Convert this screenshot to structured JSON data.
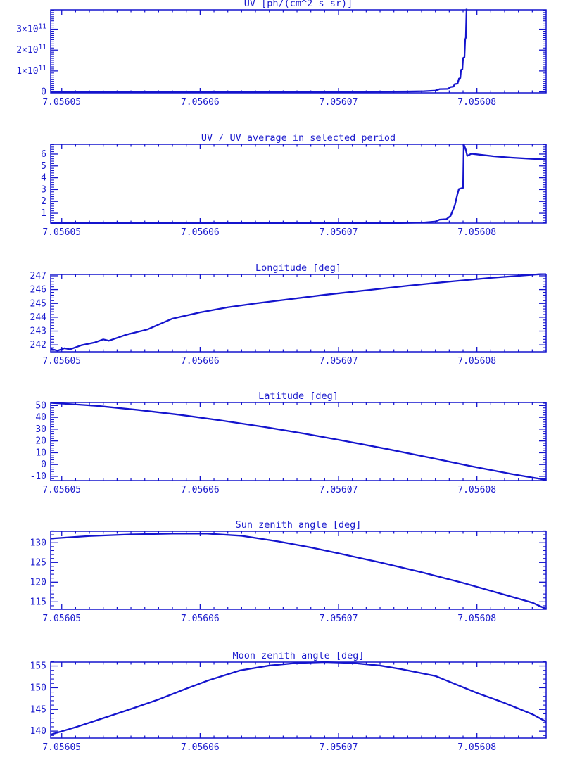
{
  "figure": {
    "background": "#ffffff",
    "line_color": "#1414cd",
    "text_color": "#1a1acd"
  },
  "x_axis": {
    "min": 7.0560492,
    "max": 7.056085,
    "minor_step": 1e-06,
    "major_ticks": [
      {
        "value": 7.05605,
        "label": "7.05605"
      },
      {
        "value": 7.05606,
        "label": "7.05606"
      },
      {
        "value": 7.05607,
        "label": "7.05607"
      },
      {
        "value": 7.05608,
        "label": "7.05608"
      }
    ]
  },
  "chart_data": [
    {
      "type": "line",
      "title": "UV [ph/(cm^2 s sr)]",
      "ylabel": "",
      "legend": "none",
      "grid": false,
      "y_axis": {
        "min": -5000000000.0,
        "max": 393000000000.0,
        "minor_step": 10000000000.0,
        "major_ticks": [
          {
            "value": 0,
            "label": "0"
          },
          {
            "value": 100000000000.0,
            "label": "1×10^11"
          },
          {
            "value": 200000000000.0,
            "label": "2×10^11"
          },
          {
            "value": 300000000000.0,
            "label": "3×10^11"
          }
        ]
      },
      "series": [
        [
          7.0560492,
          400000000.0
        ],
        [
          7.056072,
          400000000.0
        ],
        [
          7.056075,
          1500000000.0
        ],
        [
          7.0560762,
          3000000000.0
        ],
        [
          7.056077,
          6000000000.0
        ],
        [
          7.0560773,
          13000000000.0
        ],
        [
          7.0560779,
          14000000000.0
        ],
        [
          7.0560781,
          23000000000.0
        ],
        [
          7.0560783,
          25000000000.0
        ],
        [
          7.0560784,
          37000000000.0
        ],
        [
          7.0560786,
          39000000000.0
        ],
        [
          7.0560787,
          63000000000.0
        ],
        [
          7.0560788,
          66000000000.0
        ],
        [
          7.05607885,
          105000000000.0
        ],
        [
          7.05607895,
          108000000000.0
        ],
        [
          7.056079,
          162000000000.0
        ],
        [
          7.0560791,
          166000000000.0
        ],
        [
          7.05607915,
          250000000000.0
        ],
        [
          7.0560792,
          260000000000.0
        ],
        [
          7.05607925,
          393000000000.0
        ],
        [
          7.0560793,
          800000000000.0
        ],
        [
          7.056085,
          800000000000.0
        ]
      ]
    },
    {
      "type": "line",
      "title": "UV / UV average in selected period",
      "y_axis": {
        "min": 0.17,
        "max": 6.83,
        "minor_step": 0.2,
        "major_ticks": [
          {
            "value": 1,
            "label": "1"
          },
          {
            "value": 2,
            "label": "2"
          },
          {
            "value": 3,
            "label": "3"
          },
          {
            "value": 4,
            "label": "4"
          },
          {
            "value": 5,
            "label": "5"
          },
          {
            "value": 6,
            "label": "6"
          }
        ]
      },
      "series": [
        [
          7.0560492,
          0.18
        ],
        [
          7.0560745,
          0.18
        ],
        [
          7.0560762,
          0.22
        ],
        [
          7.056077,
          0.3
        ],
        [
          7.0560773,
          0.46
        ],
        [
          7.0560778,
          0.5
        ],
        [
          7.0560781,
          0.78
        ],
        [
          7.0560784,
          1.65
        ],
        [
          7.0560786,
          2.65
        ],
        [
          7.0560787,
          3.05
        ],
        [
          7.056079,
          3.15
        ],
        [
          7.05607905,
          6.83
        ],
        [
          7.0560792,
          6.35
        ],
        [
          7.0560793,
          5.85
        ],
        [
          7.0560796,
          6.03
        ],
        [
          7.0560802,
          5.95
        ],
        [
          7.0560812,
          5.82
        ],
        [
          7.0560825,
          5.7
        ],
        [
          7.056084,
          5.6
        ],
        [
          7.056085,
          5.55
        ]
      ]
    },
    {
      "type": "line",
      "title": "Longitude [deg]",
      "y_axis": {
        "min": 241.5,
        "max": 247.1,
        "minor_step": 0.2,
        "major_ticks": [
          {
            "value": 242,
            "label": "242"
          },
          {
            "value": 243,
            "label": "243"
          },
          {
            "value": 244,
            "label": "244"
          },
          {
            "value": 245,
            "label": "245"
          },
          {
            "value": 246,
            "label": "246"
          },
          {
            "value": 247,
            "label": "247"
          }
        ]
      },
      "series": [
        [
          7.0560492,
          241.72
        ],
        [
          7.0560497,
          241.58
        ],
        [
          7.0560502,
          241.76
        ],
        [
          7.0560506,
          241.68
        ],
        [
          7.0560514,
          241.97
        ],
        [
          7.0560524,
          242.18
        ],
        [
          7.056053,
          242.4
        ],
        [
          7.0560534,
          242.3
        ],
        [
          7.0560546,
          242.72
        ],
        [
          7.0560562,
          243.12
        ],
        [
          7.056058,
          243.9
        ],
        [
          7.05606,
          244.35
        ],
        [
          7.056062,
          244.72
        ],
        [
          7.056064,
          245.0
        ],
        [
          7.056066,
          245.25
        ],
        [
          7.056069,
          245.62
        ],
        [
          7.056072,
          245.95
        ],
        [
          7.056075,
          246.28
        ],
        [
          7.056078,
          246.58
        ],
        [
          7.056081,
          246.85
        ],
        [
          7.056083,
          247.0
        ],
        [
          7.056085,
          247.15
        ]
      ]
    },
    {
      "type": "line",
      "title": "Latitude [deg]",
      "y_axis": {
        "min": -13.6,
        "max": 52.6,
        "minor_step": 2,
        "major_ticks": [
          {
            "value": -10,
            "label": "-10"
          },
          {
            "value": 0,
            "label": "0"
          },
          {
            "value": 10,
            "label": "10"
          },
          {
            "value": 20,
            "label": "20"
          },
          {
            "value": 30,
            "label": "30"
          },
          {
            "value": 40,
            "label": "40"
          },
          {
            "value": 50,
            "label": "50"
          }
        ]
      },
      "series": [
        [
          7.0560492,
          52.3
        ],
        [
          7.0560525,
          49.8
        ],
        [
          7.0560555,
          46.3
        ],
        [
          7.0560585,
          42.2
        ],
        [
          7.0560615,
          37.4
        ],
        [
          7.0560645,
          32.1
        ],
        [
          7.0560675,
          26.3
        ],
        [
          7.0560705,
          19.9
        ],
        [
          7.0560735,
          13.2
        ],
        [
          7.0560765,
          6.1
        ],
        [
          7.0560795,
          -1.2
        ],
        [
          7.0560825,
          -8.0
        ],
        [
          7.056085,
          -13.0
        ]
      ]
    },
    {
      "type": "line",
      "title": "Sun zenith angle [deg]",
      "y_axis": {
        "min": 113.1,
        "max": 132.9,
        "minor_step": 1,
        "major_ticks": [
          {
            "value": 115,
            "label": "115"
          },
          {
            "value": 120,
            "label": "120"
          },
          {
            "value": 125,
            "label": "125"
          },
          {
            "value": 130,
            "label": "130"
          }
        ]
      },
      "series": [
        [
          7.0560492,
          131.05
        ],
        [
          7.056052,
          131.7
        ],
        [
          7.056055,
          132.1
        ],
        [
          7.056058,
          132.3
        ],
        [
          7.0560605,
          132.3
        ],
        [
          7.056063,
          131.75
        ],
        [
          7.0560657,
          130.3
        ],
        [
          7.056068,
          128.8
        ],
        [
          7.05607,
          127.3
        ],
        [
          7.056073,
          125.0
        ],
        [
          7.056076,
          122.5
        ],
        [
          7.056079,
          119.8
        ],
        [
          7.056082,
          116.8
        ],
        [
          7.056084,
          114.8
        ],
        [
          7.056085,
          113.2
        ]
      ]
    },
    {
      "type": "line",
      "title": "Moon zenith angle [deg]",
      "y_axis": {
        "min": 138.4,
        "max": 155.9,
        "minor_step": 1,
        "major_ticks": [
          {
            "value": 140,
            "label": "140"
          },
          {
            "value": 145,
            "label": "145"
          },
          {
            "value": 150,
            "label": "150"
          },
          {
            "value": 155,
            "label": "155"
          }
        ]
      },
      "series": [
        [
          7.0560492,
          139.2
        ],
        [
          7.056051,
          140.9
        ],
        [
          7.056053,
          143.0
        ],
        [
          7.056055,
          145.1
        ],
        [
          7.056057,
          147.3
        ],
        [
          7.056059,
          149.8
        ],
        [
          7.0560606,
          151.7
        ],
        [
          7.0560629,
          154.0
        ],
        [
          7.056065,
          155.1
        ],
        [
          7.056067,
          155.7
        ],
        [
          7.056069,
          155.9
        ],
        [
          7.056071,
          155.7
        ],
        [
          7.056073,
          155.1
        ],
        [
          7.0560745,
          154.3
        ],
        [
          7.056077,
          152.7
        ],
        [
          7.05608,
          148.8
        ],
        [
          7.056082,
          146.5
        ],
        [
          7.056084,
          143.9
        ],
        [
          7.056085,
          142.2
        ]
      ]
    }
  ]
}
